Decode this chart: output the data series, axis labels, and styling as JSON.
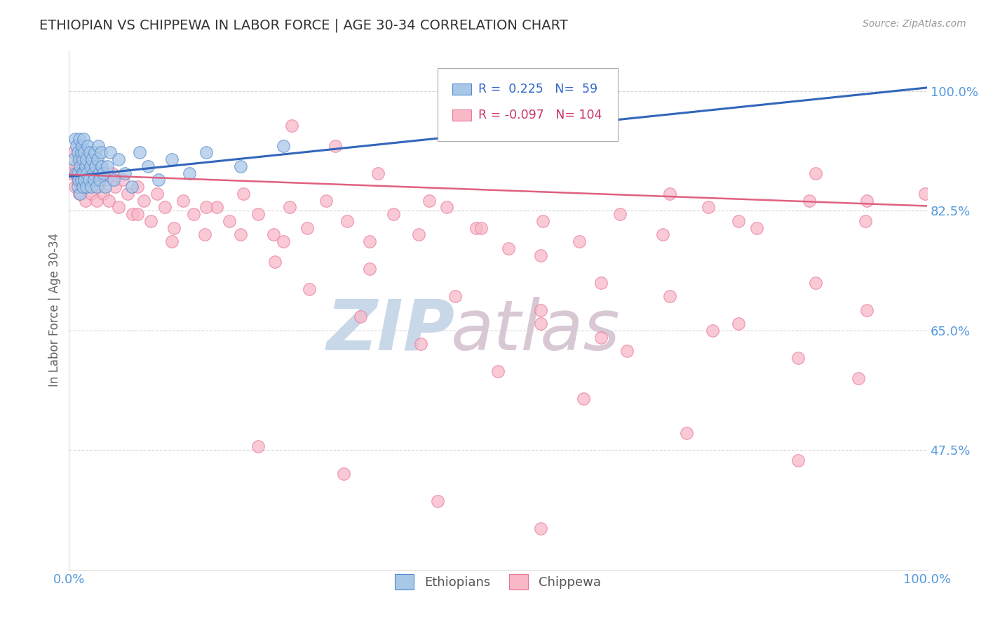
{
  "title": "ETHIOPIAN VS CHIPPEWA IN LABOR FORCE | AGE 30-34 CORRELATION CHART",
  "source": "Source: ZipAtlas.com",
  "ylabel": "In Labor Force | Age 30-34",
  "xlim": [
    0.0,
    1.0
  ],
  "ylim": [
    0.3,
    1.06
  ],
  "yticks": [
    0.475,
    0.65,
    0.825,
    1.0
  ],
  "ytick_labels": [
    "47.5%",
    "65.0%",
    "82.5%",
    "100.0%"
  ],
  "xtick_labels": [
    "0.0%",
    "100.0%"
  ],
  "xticks": [
    0.0,
    1.0
  ],
  "r_ethiopian": 0.225,
  "n_ethiopian": 59,
  "r_chippewa": -0.097,
  "n_chippewa": 104,
  "blue_fill": "#a8c8e8",
  "blue_edge": "#5588cc",
  "pink_fill": "#f8b8c8",
  "pink_edge": "#e87898",
  "blue_line_color": "#3366bb",
  "pink_line_color": "#e06080",
  "title_color": "#333333",
  "axis_label_color": "#666666",
  "tick_label_color": "#5599dd",
  "grid_color": "#cccccc",
  "watermark_zip_color": "#d0dde8",
  "watermark_atlas_color": "#d8c8d8",
  "legend_blue_text": "#3366cc",
  "legend_pink_text": "#cc3366",
  "ethiopians_x": [
    0.005,
    0.007,
    0.008,
    0.009,
    0.01,
    0.01,
    0.01,
    0.011,
    0.012,
    0.012,
    0.013,
    0.013,
    0.014,
    0.014,
    0.015,
    0.015,
    0.016,
    0.016,
    0.017,
    0.017,
    0.018,
    0.018,
    0.019,
    0.02,
    0.02,
    0.021,
    0.022,
    0.023,
    0.024,
    0.025,
    0.026,
    0.027,
    0.028,
    0.029,
    0.03,
    0.031,
    0.032,
    0.033,
    0.034,
    0.035,
    0.036,
    0.037,
    0.038,
    0.04,
    0.042,
    0.045,
    0.048,
    0.052,
    0.058,
    0.065,
    0.073,
    0.082,
    0.092,
    0.104,
    0.12,
    0.14,
    0.16,
    0.2,
    0.25
  ],
  "ethiopians_y": [
    0.9,
    0.93,
    0.88,
    0.92,
    0.86,
    0.88,
    0.91,
    0.87,
    0.9,
    0.93,
    0.85,
    0.89,
    0.87,
    0.91,
    0.88,
    0.92,
    0.86,
    0.9,
    0.88,
    0.93,
    0.87,
    0.91,
    0.89,
    0.86,
    0.9,
    0.88,
    0.92,
    0.87,
    0.91,
    0.89,
    0.86,
    0.9,
    0.88,
    0.87,
    0.91,
    0.89,
    0.86,
    0.9,
    0.92,
    0.88,
    0.87,
    0.91,
    0.89,
    0.88,
    0.86,
    0.89,
    0.91,
    0.87,
    0.9,
    0.88,
    0.86,
    0.91,
    0.89,
    0.87,
    0.9,
    0.88,
    0.91,
    0.89,
    0.92
  ],
  "chippewa_x": [
    0.003,
    0.005,
    0.007,
    0.008,
    0.01,
    0.011,
    0.012,
    0.013,
    0.015,
    0.016,
    0.018,
    0.019,
    0.021,
    0.022,
    0.024,
    0.026,
    0.028,
    0.03,
    0.032,
    0.035,
    0.037,
    0.04,
    0.043,
    0.046,
    0.05,
    0.054,
    0.058,
    0.063,
    0.068,
    0.074,
    0.08,
    0.087,
    0.095,
    0.103,
    0.112,
    0.122,
    0.133,
    0.145,
    0.158,
    0.172,
    0.187,
    0.203,
    0.22,
    0.238,
    0.257,
    0.278,
    0.3,
    0.324,
    0.35,
    0.378,
    0.408,
    0.44,
    0.475,
    0.512,
    0.552,
    0.595,
    0.642,
    0.692,
    0.745,
    0.802,
    0.863,
    0.928,
    0.998,
    0.26,
    0.31,
    0.36,
    0.42,
    0.48,
    0.55,
    0.62,
    0.7,
    0.78,
    0.87,
    0.93,
    0.55,
    0.62,
    0.7,
    0.78,
    0.87,
    0.93,
    0.25,
    0.35,
    0.45,
    0.55,
    0.65,
    0.75,
    0.85,
    0.92,
    0.08,
    0.12,
    0.16,
    0.2,
    0.24,
    0.28,
    0.34,
    0.41,
    0.5,
    0.6,
    0.72,
    0.85,
    0.22,
    0.32,
    0.43,
    0.55
  ],
  "chippewa_y": [
    0.88,
    0.91,
    0.86,
    0.89,
    0.87,
    0.9,
    0.85,
    0.88,
    0.86,
    0.89,
    0.87,
    0.84,
    0.88,
    0.86,
    0.9,
    0.85,
    0.88,
    0.87,
    0.84,
    0.86,
    0.89,
    0.85,
    0.87,
    0.84,
    0.88,
    0.86,
    0.83,
    0.87,
    0.85,
    0.82,
    0.86,
    0.84,
    0.81,
    0.85,
    0.83,
    0.8,
    0.84,
    0.82,
    0.79,
    0.83,
    0.81,
    0.85,
    0.82,
    0.79,
    0.83,
    0.8,
    0.84,
    0.81,
    0.78,
    0.82,
    0.79,
    0.83,
    0.8,
    0.77,
    0.81,
    0.78,
    0.82,
    0.79,
    0.83,
    0.8,
    0.84,
    0.81,
    0.85,
    0.95,
    0.92,
    0.88,
    0.84,
    0.8,
    0.76,
    0.72,
    0.85,
    0.81,
    0.88,
    0.84,
    0.68,
    0.64,
    0.7,
    0.66,
    0.72,
    0.68,
    0.78,
    0.74,
    0.7,
    0.66,
    0.62,
    0.65,
    0.61,
    0.58,
    0.82,
    0.78,
    0.83,
    0.79,
    0.75,
    0.71,
    0.67,
    0.63,
    0.59,
    0.55,
    0.5,
    0.46,
    0.48,
    0.44,
    0.4,
    0.36
  ]
}
